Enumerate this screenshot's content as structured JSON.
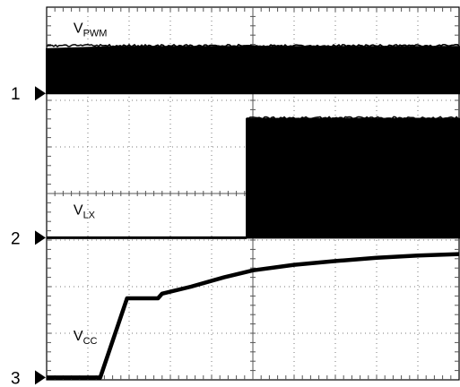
{
  "chart_data": {
    "type": "line",
    "title": "",
    "xlabel": "",
    "ylabel": "",
    "grid": true,
    "divisions": {
      "x": 10,
      "y": 8
    },
    "xlim": [
      0,
      10
    ],
    "ylim": [
      0,
      8
    ],
    "channel_markers": [
      {
        "label": "1",
        "level": 6.15
      },
      {
        "label": "2",
        "level": 3.05
      },
      {
        "label": "3",
        "level": 0.05
      }
    ],
    "series": [
      {
        "name": "V",
        "subscript": "PWM",
        "kind": "switching",
        "label_pos": [
          0.65,
          7.45
        ],
        "start": 0.0,
        "low": 6.15,
        "high": 7.15,
        "envelope": [
          [
            0.0,
            7.1
          ],
          [
            1.8,
            7.15
          ],
          [
            10.0,
            7.15
          ]
        ]
      },
      {
        "name": "V",
        "subscript": "LX",
        "kind": "switching",
        "label_pos": [
          0.65,
          3.55
        ],
        "start": 4.85,
        "low": 3.05,
        "high": 5.6,
        "envelope": [
          [
            4.85,
            5.6
          ],
          [
            10.0,
            5.6
          ]
        ]
      },
      {
        "name": "V",
        "subscript": "CC",
        "kind": "line",
        "label_pos": [
          0.65,
          0.85
        ],
        "points": [
          [
            0.0,
            0.05
          ],
          [
            1.3,
            0.05
          ],
          [
            1.95,
            1.75
          ],
          [
            2.7,
            1.75
          ],
          [
            2.8,
            1.85
          ],
          [
            3.5,
            2.0
          ],
          [
            4.3,
            2.2
          ],
          [
            5.0,
            2.35
          ],
          [
            6.0,
            2.47
          ],
          [
            7.0,
            2.55
          ],
          [
            8.0,
            2.62
          ],
          [
            9.0,
            2.67
          ],
          [
            10.0,
            2.7
          ]
        ]
      }
    ]
  }
}
